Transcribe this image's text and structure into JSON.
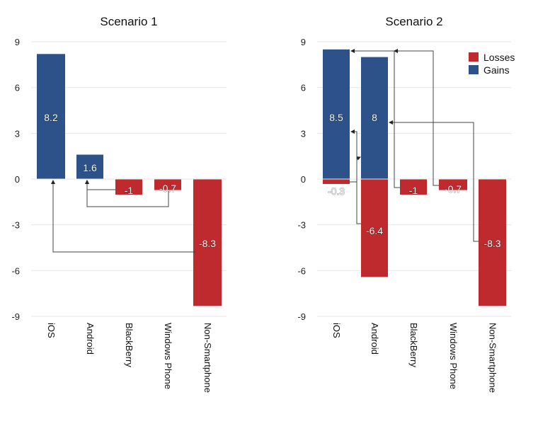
{
  "colors": {
    "gains": "#2c5289",
    "losses": "#be2a2e",
    "grid": "#e6e6e6",
    "arrow": "#444444"
  },
  "chart_data": [
    {
      "type": "bar",
      "title": "Scenario 1",
      "xlabel": "",
      "ylabel": "",
      "ylim": [
        -9,
        9
      ],
      "yticks": [
        9,
        6,
        3,
        0,
        -3,
        -6,
        -9
      ],
      "ytick_labels": [
        "9",
        "6",
        "3",
        "0",
        "-3",
        "-6",
        "-9"
      ],
      "grid": true,
      "legend": null,
      "categories": [
        "iOS",
        "Android",
        "BlackBerry",
        "Windows Phone",
        "Non-Smartphone"
      ],
      "series": [
        {
          "name": "Gains",
          "values": [
            8.2,
            1.6,
            null,
            null,
            null
          ]
        },
        {
          "name": "Losses",
          "values": [
            null,
            null,
            -1,
            -0.7,
            -8.3
          ]
        }
      ],
      "data_labels": [
        "8.2",
        "1.6",
        "-1",
        "-0.7",
        "-8.3"
      ],
      "flows": [
        {
          "from": "BlackBerry",
          "to": "Android"
        },
        {
          "from": "Windows Phone",
          "to": "Android"
        },
        {
          "from": "Non-Smartphone",
          "to": "iOS"
        }
      ]
    },
    {
      "type": "bar",
      "title": "Scenario 2",
      "xlabel": "",
      "ylabel": "",
      "ylim": [
        -9,
        9
      ],
      "yticks": [
        9,
        6,
        3,
        0,
        -3,
        -6,
        -9
      ],
      "ytick_labels": [
        "9",
        "6",
        "3",
        "0",
        "-3",
        "-6",
        "-9"
      ],
      "grid": true,
      "legend": {
        "position": "top-right",
        "entries": [
          "Losses",
          "Gains"
        ]
      },
      "categories": [
        "iOS",
        "Android",
        "BlackBerry",
        "Windows Phone",
        "Non-Smartphone"
      ],
      "series": [
        {
          "name": "Gains",
          "values": [
            8.5,
            8,
            null,
            null,
            null
          ]
        },
        {
          "name": "Losses",
          "values": [
            -0.3,
            -6.4,
            -1,
            -0.7,
            -8.3
          ]
        }
      ],
      "data_labels": {
        "gains": [
          "8.5",
          "8",
          null,
          null,
          null
        ],
        "losses": [
          "-0.3",
          "-6.4",
          "-1",
          "-0.7",
          "-8.3"
        ]
      },
      "flows": [
        {
          "from": "iOS",
          "to": "Android"
        },
        {
          "from": "Android",
          "to": "iOS"
        },
        {
          "from": "BlackBerry",
          "to": "iOS"
        },
        {
          "from": "Windows Phone",
          "to": "iOS"
        },
        {
          "from": "Non-Smartphone",
          "to": "Android"
        }
      ]
    }
  ]
}
